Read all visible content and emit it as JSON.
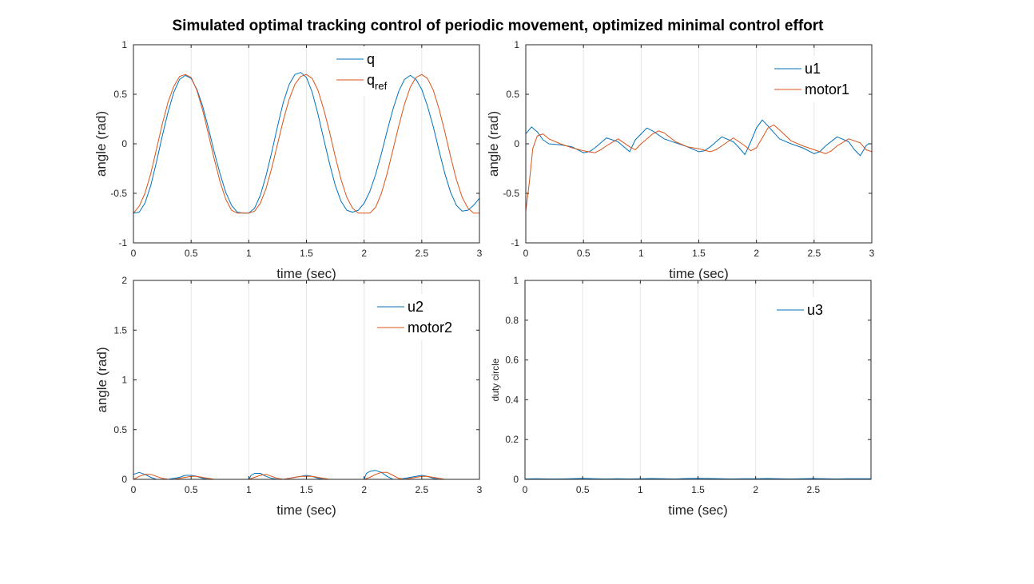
{
  "figure": {
    "title": "Simulated optimal tracking control of periodic movement, optimized minimal control effort"
  },
  "colors": {
    "blue": "#0072BD",
    "orange": "#D95319"
  },
  "chart_data": [
    {
      "type": "line",
      "xlabel": "time (sec)",
      "ylabel": "angle (rad)",
      "xlim": [
        0,
        3
      ],
      "ylim": [
        -1,
        1
      ],
      "xticks": [
        "0",
        "0.5",
        "1",
        "1.5",
        "2",
        "2.5",
        "3"
      ],
      "yticks": [
        "-1",
        "-0.5",
        "0",
        "0.5",
        "1"
      ],
      "grid": "vertical",
      "legend_position": "top-center",
      "series": [
        {
          "name": "q",
          "color": "#0072BD",
          "x": [
            0,
            0.05,
            0.1,
            0.15,
            0.2,
            0.25,
            0.3,
            0.35,
            0.4,
            0.45,
            0.5,
            0.55,
            0.6,
            0.65,
            0.7,
            0.75,
            0.8,
            0.85,
            0.9,
            0.95,
            1.0,
            1.05,
            1.1,
            1.15,
            1.2,
            1.25,
            1.3,
            1.35,
            1.4,
            1.45,
            1.5,
            1.55,
            1.6,
            1.65,
            1.7,
            1.75,
            1.8,
            1.85,
            1.9,
            1.95,
            2.0,
            2.05,
            2.1,
            2.15,
            2.2,
            2.25,
            2.3,
            2.35,
            2.4,
            2.45,
            2.5,
            2.55,
            2.6,
            2.65,
            2.7,
            2.75,
            2.8,
            2.85,
            2.9,
            2.95,
            3.0
          ],
          "y": [
            -0.7,
            -0.69,
            -0.6,
            -0.42,
            -0.18,
            0.08,
            0.32,
            0.52,
            0.65,
            0.69,
            0.66,
            0.55,
            0.38,
            0.16,
            -0.08,
            -0.3,
            -0.49,
            -0.62,
            -0.69,
            -0.7,
            -0.7,
            -0.65,
            -0.52,
            -0.32,
            -0.08,
            0.18,
            0.42,
            0.6,
            0.7,
            0.72,
            0.67,
            0.52,
            0.3,
            0.05,
            -0.2,
            -0.42,
            -0.58,
            -0.67,
            -0.69,
            -0.67,
            -0.6,
            -0.48,
            -0.31,
            -0.1,
            0.13,
            0.35,
            0.53,
            0.65,
            0.69,
            0.65,
            0.55,
            0.38,
            0.17,
            -0.07,
            -0.3,
            -0.49,
            -0.62,
            -0.68,
            -0.67,
            -0.62,
            -0.55
          ]
        },
        {
          "name": "q_ref",
          "color": "#D95319",
          "x": [
            0,
            0.05,
            0.1,
            0.15,
            0.2,
            0.25,
            0.3,
            0.35,
            0.4,
            0.45,
            0.5,
            0.55,
            0.6,
            0.65,
            0.7,
            0.75,
            0.8,
            0.85,
            0.9,
            0.95,
            1.0,
            1.05,
            1.1,
            1.15,
            1.2,
            1.25,
            1.3,
            1.35,
            1.4,
            1.45,
            1.5,
            1.55,
            1.6,
            1.65,
            1.7,
            1.75,
            1.8,
            1.85,
            1.9,
            1.95,
            2.0,
            2.05,
            2.1,
            2.15,
            2.2,
            2.25,
            2.3,
            2.35,
            2.4,
            2.45,
            2.5,
            2.55,
            2.6,
            2.65,
            2.7,
            2.75,
            2.8,
            2.85,
            2.9,
            2.95,
            3.0
          ],
          "y": [
            -0.7,
            -0.63,
            -0.5,
            -0.3,
            -0.05,
            0.2,
            0.42,
            0.58,
            0.68,
            0.7,
            0.67,
            0.54,
            0.34,
            0.1,
            -0.15,
            -0.38,
            -0.56,
            -0.67,
            -0.7,
            -0.7,
            -0.7,
            -0.68,
            -0.6,
            -0.45,
            -0.24,
            0.0,
            0.24,
            0.45,
            0.6,
            0.68,
            0.7,
            0.66,
            0.54,
            0.35,
            0.12,
            -0.13,
            -0.36,
            -0.54,
            -0.65,
            -0.7,
            -0.7,
            -0.7,
            -0.64,
            -0.5,
            -0.3,
            -0.06,
            0.18,
            0.4,
            0.57,
            0.67,
            0.7,
            0.66,
            0.54,
            0.35,
            0.12,
            -0.13,
            -0.36,
            -0.54,
            -0.65,
            -0.7,
            -0.7
          ]
        }
      ]
    },
    {
      "type": "line",
      "xlabel": "time (sec)",
      "ylabel": "angle (rad)",
      "xlim": [
        0,
        3
      ],
      "ylim": [
        -1,
        1
      ],
      "xticks": [
        "0",
        "0.5",
        "1",
        "1.5",
        "2",
        "2.5",
        "3"
      ],
      "yticks": [
        "-1",
        "-0.5",
        "0",
        "0.5",
        "1"
      ],
      "grid": "vertical",
      "legend_position": "top-right",
      "series": [
        {
          "name": "u1",
          "color": "#0072BD",
          "x": [
            0,
            0.05,
            0.1,
            0.15,
            0.2,
            0.3,
            0.4,
            0.5,
            0.55,
            0.6,
            0.7,
            0.8,
            0.85,
            0.9,
            0.95,
            1.0,
            1.05,
            1.1,
            1.2,
            1.3,
            1.4,
            1.5,
            1.55,
            1.6,
            1.7,
            1.8,
            1.85,
            1.9,
            1.95,
            2.0,
            2.05,
            2.1,
            2.2,
            2.3,
            2.4,
            2.5,
            2.55,
            2.6,
            2.7,
            2.8,
            2.85,
            2.9,
            2.95,
            2.97,
            3.0
          ],
          "y": [
            0.1,
            0.17,
            0.12,
            0.04,
            0.0,
            -0.01,
            -0.03,
            -0.09,
            -0.08,
            -0.04,
            0.06,
            0.02,
            -0.03,
            -0.08,
            0.04,
            0.1,
            0.16,
            0.13,
            0.05,
            0.01,
            -0.03,
            -0.08,
            -0.07,
            -0.03,
            0.07,
            0.02,
            -0.04,
            -0.11,
            0.02,
            0.16,
            0.24,
            0.18,
            0.05,
            0.0,
            -0.04,
            -0.1,
            -0.08,
            -0.02,
            0.07,
            0.02,
            -0.06,
            -0.12,
            -0.02,
            0.0,
            0.0
          ]
        },
        {
          "name": "motor1",
          "color": "#D95319",
          "x": [
            0,
            0.03,
            0.06,
            0.1,
            0.15,
            0.2,
            0.3,
            0.4,
            0.5,
            0.6,
            0.65,
            0.7,
            0.8,
            0.9,
            0.95,
            1.0,
            1.1,
            1.15,
            1.2,
            1.3,
            1.4,
            1.5,
            1.6,
            1.65,
            1.7,
            1.8,
            1.9,
            1.95,
            2.0,
            2.05,
            2.1,
            2.15,
            2.2,
            2.3,
            2.4,
            2.5,
            2.6,
            2.65,
            2.7,
            2.8,
            2.9,
            2.95,
            3.0
          ],
          "y": [
            -0.68,
            -0.4,
            -0.05,
            0.08,
            0.1,
            0.05,
            0.0,
            -0.04,
            -0.07,
            -0.09,
            -0.06,
            -0.02,
            0.05,
            -0.03,
            -0.06,
            0.0,
            0.1,
            0.13,
            0.11,
            0.02,
            -0.03,
            -0.05,
            -0.08,
            -0.06,
            -0.02,
            0.06,
            -0.02,
            -0.07,
            -0.04,
            0.06,
            0.16,
            0.19,
            0.14,
            0.03,
            -0.02,
            -0.06,
            -0.1,
            -0.07,
            -0.02,
            0.05,
            0.01,
            -0.06,
            -0.08
          ]
        }
      ]
    },
    {
      "type": "line",
      "xlabel": "time (sec)",
      "ylabel": "angle (rad)",
      "xlim": [
        0,
        3
      ],
      "ylim": [
        0,
        2
      ],
      "xticks": [
        "0",
        "0.5",
        "1",
        "1.5",
        "2",
        "2.5",
        "3"
      ],
      "yticks": [
        "0",
        "0.5",
        "1",
        "1.5",
        "2"
      ],
      "grid": "vertical",
      "legend_position": "top-right",
      "series": [
        {
          "name": "u2",
          "color": "#0072BD",
          "x": [
            0,
            0.05,
            0.1,
            0.15,
            0.2,
            0.25,
            0.3,
            0.35,
            0.4,
            0.45,
            0.5,
            0.55,
            0.6,
            0.65,
            0.7,
            0.75,
            0.8,
            0.85,
            0.9,
            0.95,
            0.99,
            1.0,
            1.02,
            1.05,
            1.1,
            1.15,
            1.2,
            1.25,
            1.3,
            1.35,
            1.4,
            1.45,
            1.5,
            1.55,
            1.6,
            1.65,
            1.7,
            1.75,
            1.8,
            1.85,
            1.9,
            1.95,
            1.99,
            2.0,
            2.02,
            2.05,
            2.1,
            2.15,
            2.2,
            2.25,
            2.3,
            2.35,
            2.4,
            2.45,
            2.5,
            2.55,
            2.6,
            2.65,
            2.7,
            2.75,
            2.8,
            2.85,
            2.9,
            2.95,
            3.0
          ],
          "y": [
            0.05,
            0.07,
            0.05,
            0.02,
            0.0,
            0.0,
            0.0,
            0.01,
            0.02,
            0.04,
            0.04,
            0.03,
            0.01,
            0.0,
            0.0,
            0.0,
            0.0,
            0.0,
            0.0,
            0.0,
            0.0,
            0.0,
            0.04,
            0.06,
            0.06,
            0.03,
            0.01,
            0.0,
            0.0,
            0.01,
            0.02,
            0.03,
            0.04,
            0.03,
            0.01,
            0.0,
            0.0,
            0.0,
            0.0,
            0.0,
            0.0,
            0.0,
            0.0,
            0.0,
            0.06,
            0.08,
            0.09,
            0.07,
            0.03,
            0.0,
            0.0,
            0.01,
            0.02,
            0.03,
            0.04,
            0.03,
            0.01,
            0.0,
            0.0,
            0.0,
            0.0,
            0.0,
            0.0,
            0.0,
            0.0
          ]
        },
        {
          "name": "motor2",
          "color": "#D95319",
          "x": [
            0,
            0.05,
            0.1,
            0.15,
            0.2,
            0.25,
            0.3,
            0.35,
            0.4,
            0.45,
            0.5,
            0.55,
            0.6,
            0.65,
            0.7,
            0.75,
            0.8,
            0.85,
            0.9,
            0.95,
            1.0,
            1.05,
            1.1,
            1.15,
            1.2,
            1.25,
            1.3,
            1.35,
            1.4,
            1.45,
            1.5,
            1.55,
            1.6,
            1.65,
            1.7,
            1.75,
            1.8,
            1.85,
            1.9,
            1.95,
            2.0,
            2.05,
            2.1,
            2.15,
            2.2,
            2.25,
            2.3,
            2.35,
            2.4,
            2.45,
            2.5,
            2.55,
            2.6,
            2.65,
            2.7,
            2.75,
            2.8,
            2.85,
            2.9,
            2.95,
            3.0
          ],
          "y": [
            0.0,
            0.03,
            0.05,
            0.05,
            0.03,
            0.01,
            0.0,
            0.0,
            0.01,
            0.02,
            0.03,
            0.03,
            0.02,
            0.01,
            0.0,
            0.0,
            0.0,
            0.0,
            0.0,
            0.0,
            0.0,
            0.02,
            0.04,
            0.05,
            0.03,
            0.01,
            0.0,
            0.01,
            0.02,
            0.03,
            0.03,
            0.03,
            0.02,
            0.01,
            0.0,
            0.0,
            0.0,
            0.0,
            0.0,
            0.0,
            0.0,
            0.02,
            0.05,
            0.07,
            0.07,
            0.04,
            0.01,
            0.0,
            0.01,
            0.02,
            0.03,
            0.03,
            0.02,
            0.01,
            0.0,
            0.0,
            0.0,
            0.0,
            0.0,
            0.0,
            0.0
          ]
        }
      ]
    },
    {
      "type": "line",
      "xlabel": "time (sec)",
      "ylabel": "duty circle",
      "xlim": [
        0,
        3
      ],
      "ylim": [
        0,
        1
      ],
      "xticks": [
        "0",
        "0.5",
        "1",
        "1.5",
        "2",
        "2.5"
      ],
      "yticks": [
        "0",
        "0.2",
        "0.4",
        "0.6",
        "0.8",
        "1"
      ],
      "grid": "vertical",
      "legend_position": "top-right",
      "series": [
        {
          "name": "u3",
          "color": "#0072BD",
          "x": [
            0,
            0.1,
            0.2,
            0.3,
            0.4,
            0.5,
            0.6,
            0.7,
            0.8,
            0.9,
            1.0,
            1.1,
            1.2,
            1.3,
            1.4,
            1.5,
            1.6,
            1.7,
            1.8,
            1.9,
            2.0,
            2.1,
            2.2,
            2.3,
            2.4,
            2.5,
            2.6,
            2.7,
            2.8,
            2.9,
            3.0
          ],
          "y": [
            0.002,
            0.003,
            0.002,
            0.002,
            0.003,
            0.005,
            0.003,
            0.002,
            0.003,
            0.002,
            0.003,
            0.004,
            0.003,
            0.002,
            0.004,
            0.005,
            0.004,
            0.003,
            0.002,
            0.003,
            0.003,
            0.004,
            0.003,
            0.002,
            0.003,
            0.004,
            0.003,
            0.002,
            0.003,
            0.003,
            0.003
          ]
        }
      ]
    }
  ]
}
